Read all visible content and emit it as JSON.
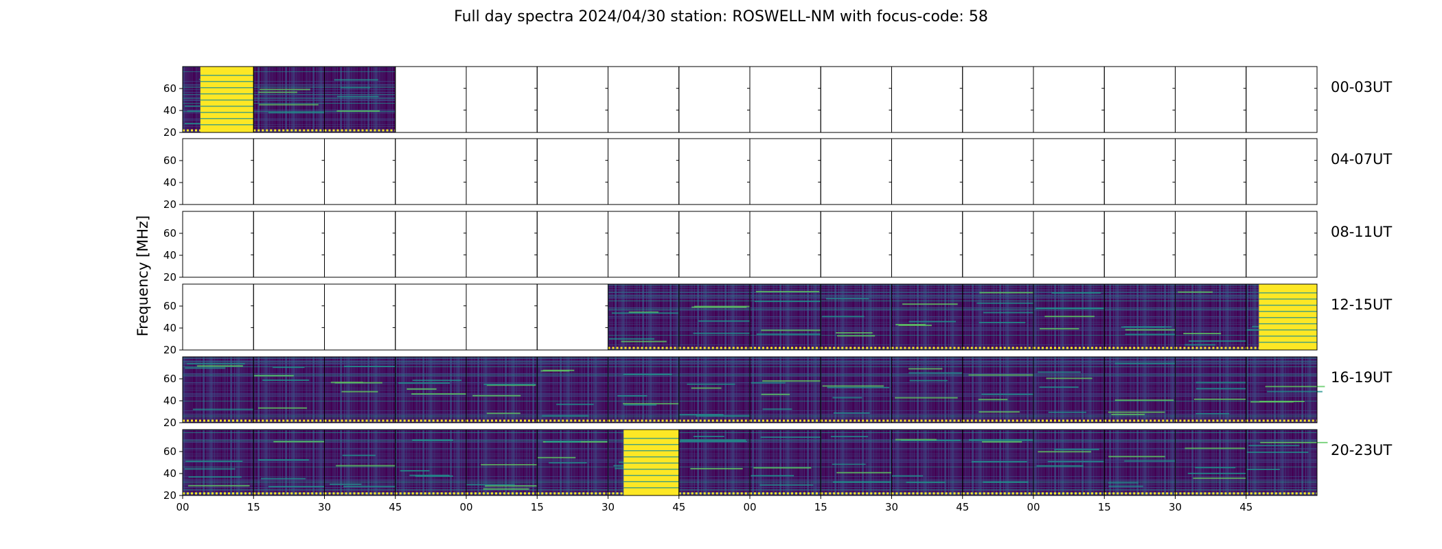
{
  "chart_data": {
    "type": "heatmap",
    "title": "Full day spectra 2024/04/30 station: ROSWELL-NM with focus-code: 58",
    "ylabel": "Frequency [MHz]",
    "yticks": [
      20,
      40,
      60
    ],
    "ylim": [
      20,
      80
    ],
    "xticks": [
      "00",
      "15",
      "30",
      "45",
      "00",
      "15",
      "30",
      "45",
      "00",
      "15",
      "30",
      "45",
      "00",
      "15",
      "30",
      "45"
    ],
    "row_labels": [
      "00-03UT",
      "04-07UT",
      "08-11UT",
      "12-15UT",
      "16-19UT",
      "20-23UT"
    ],
    "panels_per_row": 16,
    "panel_minutes": 15,
    "colormap": [
      "#440154",
      "#3b528b",
      "#21918c",
      "#5ec962",
      "#fde725"
    ],
    "rows": [
      {
        "label": "00-03UT",
        "data": [
          1,
          1,
          1,
          0,
          0,
          0,
          0,
          0,
          0,
          0,
          0,
          0,
          0,
          0,
          0,
          0
        ],
        "saturated": [
          {
            "panel": 0,
            "from": 0.25,
            "to": 1.0
          }
        ]
      },
      {
        "label": "04-07UT",
        "data": [
          0,
          0,
          0,
          0,
          0,
          0,
          0,
          0,
          0,
          0,
          0,
          0,
          0,
          0,
          0,
          0
        ],
        "saturated": []
      },
      {
        "label": "08-11UT",
        "data": [
          0,
          0,
          0,
          0,
          0,
          0,
          0,
          0,
          0,
          0,
          0,
          0,
          0,
          0,
          0,
          0
        ],
        "saturated": []
      },
      {
        "label": "12-15UT",
        "data": [
          0,
          0,
          0,
          0,
          0,
          0,
          1,
          1,
          1,
          1,
          1,
          1,
          1,
          1,
          1,
          1
        ],
        "saturated": [
          {
            "panel": 15,
            "from": 0.18,
            "to": 1.0
          }
        ]
      },
      {
        "label": "16-19UT",
        "data": [
          1,
          1,
          1,
          1,
          1,
          1,
          1,
          1,
          1,
          1,
          1,
          1,
          1,
          1,
          1,
          1
        ],
        "saturated": []
      },
      {
        "label": "20-23UT",
        "data": [
          1,
          1,
          1,
          1,
          1,
          1,
          1,
          1,
          1,
          1,
          1,
          1,
          1,
          1,
          1,
          1
        ],
        "saturated": [
          {
            "panel": 6,
            "from": 0.22,
            "to": 1.0
          }
        ]
      }
    ]
  }
}
